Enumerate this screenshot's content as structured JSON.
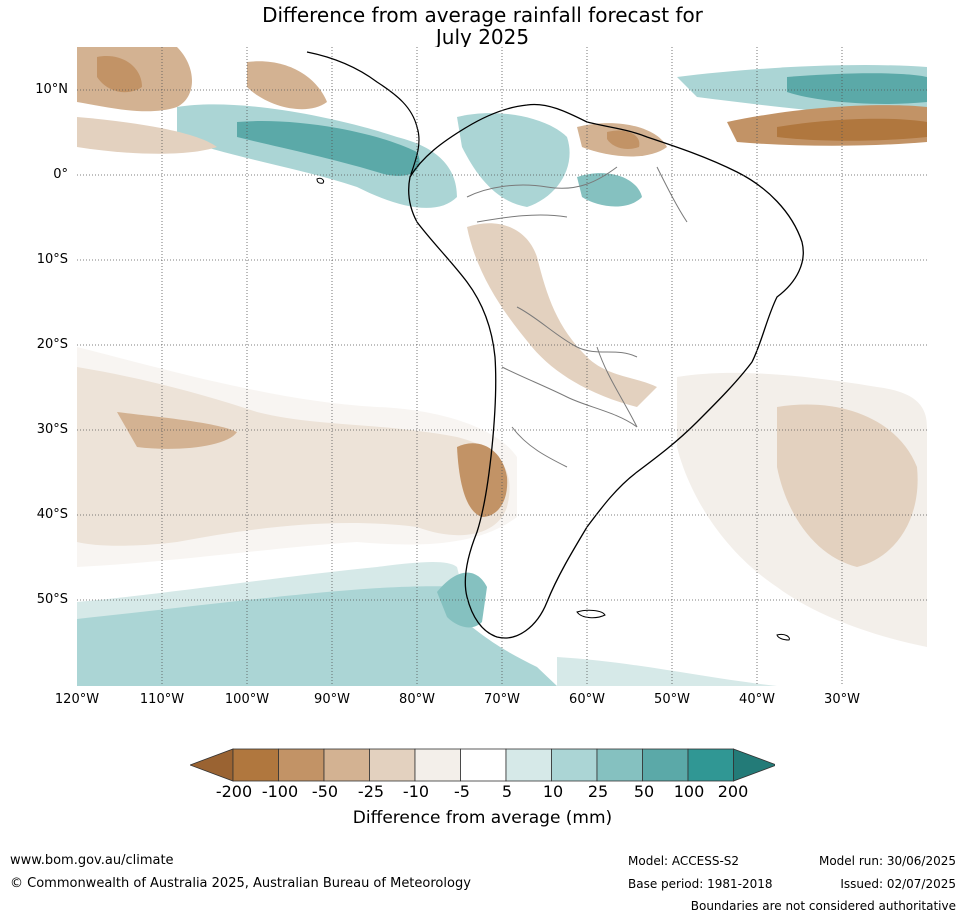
{
  "title": {
    "line1": "Difference from average rainfall forecast for",
    "line2": "July 2025"
  },
  "map": {
    "region": "South America",
    "lat_labels": [
      "10°N",
      "0°",
      "10°S",
      "20°S",
      "30°S",
      "40°S",
      "50°S"
    ],
    "lon_labels": [
      "120°W",
      "110°W",
      "100°W",
      "90°W",
      "80°W",
      "70°W",
      "60°W",
      "50°W",
      "40°W",
      "30°W"
    ],
    "gridlines": "dotted"
  },
  "legend": {
    "title": "Difference from average (mm)",
    "ticks": [
      "-200",
      "-100",
      "-50",
      "-25",
      "-10",
      "-5",
      "5",
      "10",
      "25",
      "50",
      "100",
      "200"
    ],
    "colors": [
      "#9a6332",
      "#b0773e",
      "#c29366",
      "#d3b292",
      "#e3d1bf",
      "#f3efea",
      "#ffffff",
      "#d6e9e8",
      "#abd5d5",
      "#85c1c0",
      "#5ba9a8",
      "#309794",
      "#237b78"
    ]
  },
  "footer": {
    "website": "www.bom.gov.au/climate",
    "copyright": "© Commonwealth of Australia 2025, Australian Bureau of Meteorology",
    "model": "Model: ACCESS-S2",
    "base_period": "Base period: 1981-2018",
    "model_run": "Model run: 30/06/2025",
    "issued": "Issued: 02/07/2025",
    "disclaimer": "Boundaries are not considered authoritative"
  }
}
